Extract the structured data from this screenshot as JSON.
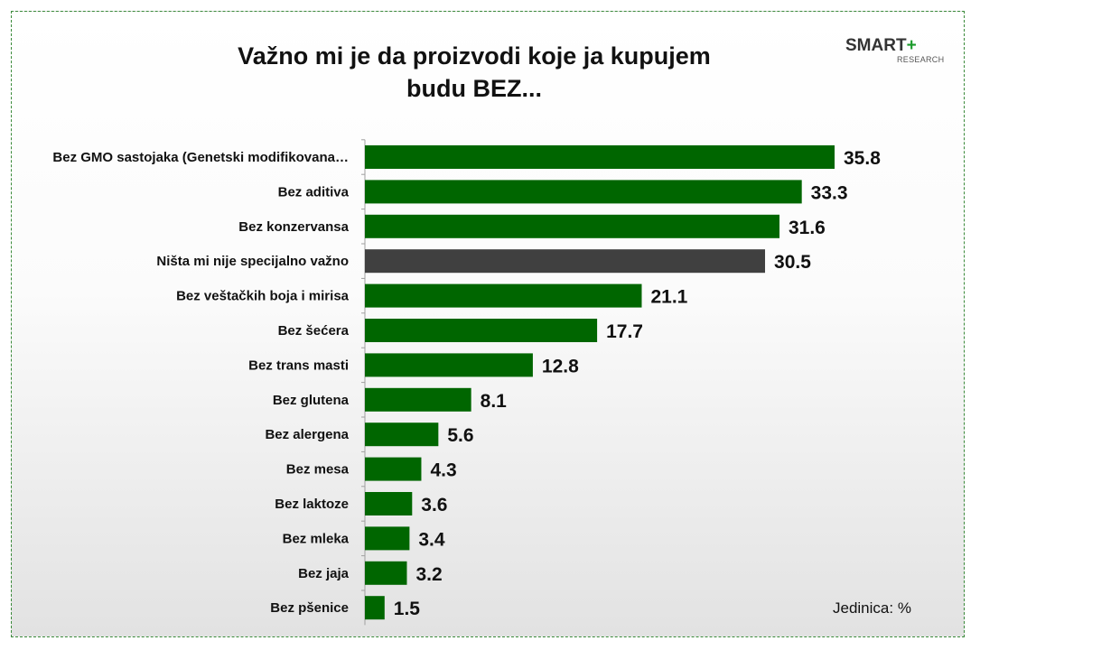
{
  "brand": {
    "main": "SMART",
    "plus": "+",
    "sub": "RESEARCH"
  },
  "unit_label": "Jedinica: %",
  "colors": {
    "default_bar": "#006600",
    "highlight_bar": "#404040",
    "frame": "#3a8a3a"
  },
  "chart_data": {
    "type": "bar",
    "orientation": "horizontal",
    "title": "Važno mi je da proizvodi koje ja kupujem budu BEZ...",
    "title_lines": [
      "Važno mi je da proizvodi koje ja kupujem",
      "budu BEZ..."
    ],
    "categories": [
      "Bez GMO sastojaka (Genetski modifikovana…",
      "Bez aditiva",
      "Bez konzervansa",
      "Ništa mi nije specijalno važno",
      "Bez veštačkih boja i mirisa",
      "Bez šećera",
      "Bez trans masti",
      "Bez glutena",
      "Bez alergena",
      "Bez mesa",
      "Bez laktoze",
      "Bez mleka",
      "Bez jaja",
      "Bez pšenice"
    ],
    "values": [
      35.8,
      33.3,
      31.6,
      30.5,
      21.1,
      17.7,
      12.8,
      8.1,
      5.6,
      4.3,
      3.6,
      3.4,
      3.2,
      1.5
    ],
    "value_labels": [
      "35.8",
      "33.3",
      "31.6",
      "30.5",
      "21.1",
      "17.7",
      "12.8",
      "8.1",
      "5.6",
      "4.3",
      "3.6",
      "3.4",
      "3.2",
      "1.5"
    ],
    "highlight_category": "Ništa mi nije specijalno važno",
    "xlim": [
      0,
      35.8
    ],
    "grid": false,
    "legend": "none"
  }
}
